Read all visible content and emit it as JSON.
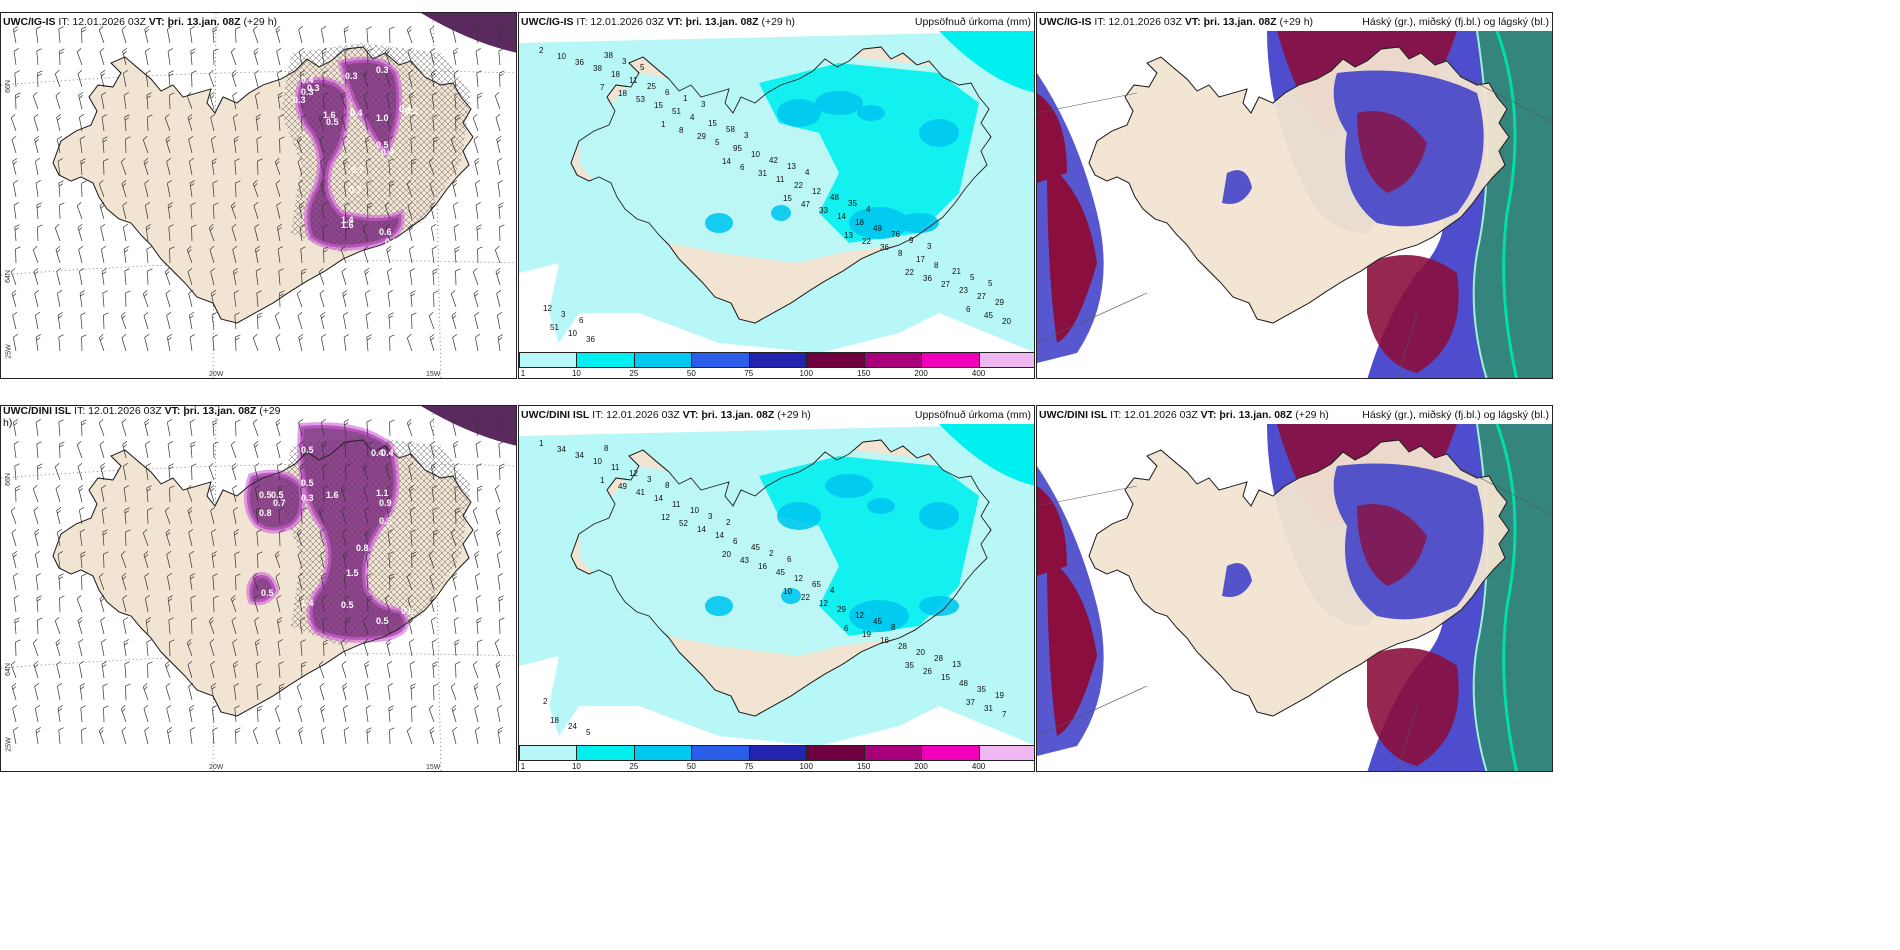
{
  "rows": [
    {
      "left_title": {
        "model": "UWC/IG-IS",
        "it": "IT: 12.01.2026 03Z",
        "vt_label": "VT:",
        "vt": "þri. 13.jan. 08Z",
        "lead": "(+29 h)"
      },
      "mid_title": {
        "model": "UWC/IG-IS",
        "it": "IT: 12.01.2026 03Z",
        "vt_label": "VT:",
        "vt": "þri. 13.jan. 08Z",
        "lead": "(+29 h)",
        "right": "Uppsöfnuð úrkoma (mm)"
      },
      "right_title": {
        "model": "UWC/IG-IS",
        "it": "IT: 12.01.2026 03Z",
        "vt_label": "VT:",
        "vt": "þri. 13.jan. 08Z",
        "lead": "(+29 h)",
        "right": "Háský (gr.), miðský (fj.bl.) og lágský (bl.)"
      },
      "left_labels": [
        "0.3",
        "0.4",
        "0.3",
        "0.3",
        "0.3",
        "0.3",
        "0.4",
        "1.0",
        "1.6",
        "0.4",
        "0.2",
        "0.5",
        "0.4",
        "0.7",
        "0.7",
        "1.4",
        "1.6",
        "0.6",
        "0.5",
        "0.3",
        "0.5"
      ],
      "precip_values": [
        "2",
        "7",
        "1",
        "14",
        "15",
        "13",
        "22",
        "6",
        "10",
        "18",
        "8",
        "6",
        "47",
        "22",
        "36",
        "45",
        "36",
        "53",
        "29",
        "31",
        "33",
        "36",
        "27",
        "20",
        "38",
        "15",
        "5",
        "11",
        "14",
        "8",
        "23",
        "51",
        "18",
        "51",
        "95",
        "22",
        "18",
        "17",
        "27",
        "10",
        "11",
        "4",
        "10",
        "12",
        "49",
        "8",
        "29",
        "36",
        "25",
        "15",
        "42",
        "48",
        "76",
        "21",
        "12",
        "38",
        "6",
        "58",
        "13",
        "35",
        "9",
        "5",
        "3",
        "3",
        "1",
        "3",
        "4",
        "4",
        "3",
        "5",
        "6",
        "5",
        "3"
      ]
    },
    {
      "left_title": {
        "model": "UWC/DINI ISL",
        "it": "IT: 12.01.2026 03Z",
        "vt_label": "VT:",
        "vt": "þri. 13.jan. 08Z",
        "lead": "(+29 h)"
      },
      "mid_title": {
        "model": "UWC/DINI ISL",
        "it": "IT: 12.01.2026 03Z",
        "vt_label": "VT:",
        "vt": "þri. 13.jan. 08Z",
        "lead": "(+29 h)",
        "right": "Uppsöfnuð úrkoma (mm)"
      },
      "right_title": {
        "model": "UWC/DINI ISL",
        "it": "IT: 12.01.2026 03Z",
        "vt_label": "VT:",
        "vt": "þri. 13.jan. 08Z",
        "lead": "(+29 h)",
        "right": "Háský (gr.), miðský (fj.bl.) og lágský (bl.)"
      },
      "left_labels": [
        "0.5",
        "0.4",
        "0.4",
        "0.5",
        "0.5",
        "0.5",
        "0.7",
        "1.6",
        "1.1",
        "0.3",
        "0.8",
        "0.9",
        "0.3",
        "0.8",
        "1.5",
        "1.4",
        "0.5",
        "0.5",
        "0.5",
        "0.6"
      ],
      "precip_values": [
        "1",
        "1",
        "12",
        "20",
        "10",
        "6",
        "35",
        "37",
        "34",
        "49",
        "52",
        "43",
        "22",
        "19",
        "26",
        "31",
        "34",
        "41",
        "14",
        "16",
        "12",
        "16",
        "15",
        "7",
        "10",
        "14",
        "14",
        "45",
        "29",
        "28",
        "48",
        "18",
        "11",
        "11",
        "6",
        "12",
        "12",
        "20",
        "35",
        "24",
        "12",
        "10",
        "45",
        "65",
        "45",
        "28",
        "19",
        "5",
        "3",
        "3",
        "2",
        "4",
        "8",
        "13",
        "2",
        "8",
        "8",
        "2",
        "6"
      ]
    }
  ],
  "colorbar": {
    "labels": [
      "1",
      "10",
      "25",
      "50",
      "75",
      "100",
      "150",
      "200",
      "400"
    ],
    "colors": [
      "#b8f7f7",
      "#00f0f0",
      "#00c8f0",
      "#2a5ee8",
      "#2323b0",
      "#6e0040",
      "#a8007a",
      "#f000b8",
      "#f0b8f0"
    ]
  },
  "axis_labels": {
    "lat66": "66N",
    "lat64": "64N",
    "lon25": "25W",
    "lon20": "20W",
    "lon15": "15W"
  },
  "colors": {
    "land": "#f2e4d2",
    "sea": "#ffffff",
    "coast": "#222222"
  }
}
